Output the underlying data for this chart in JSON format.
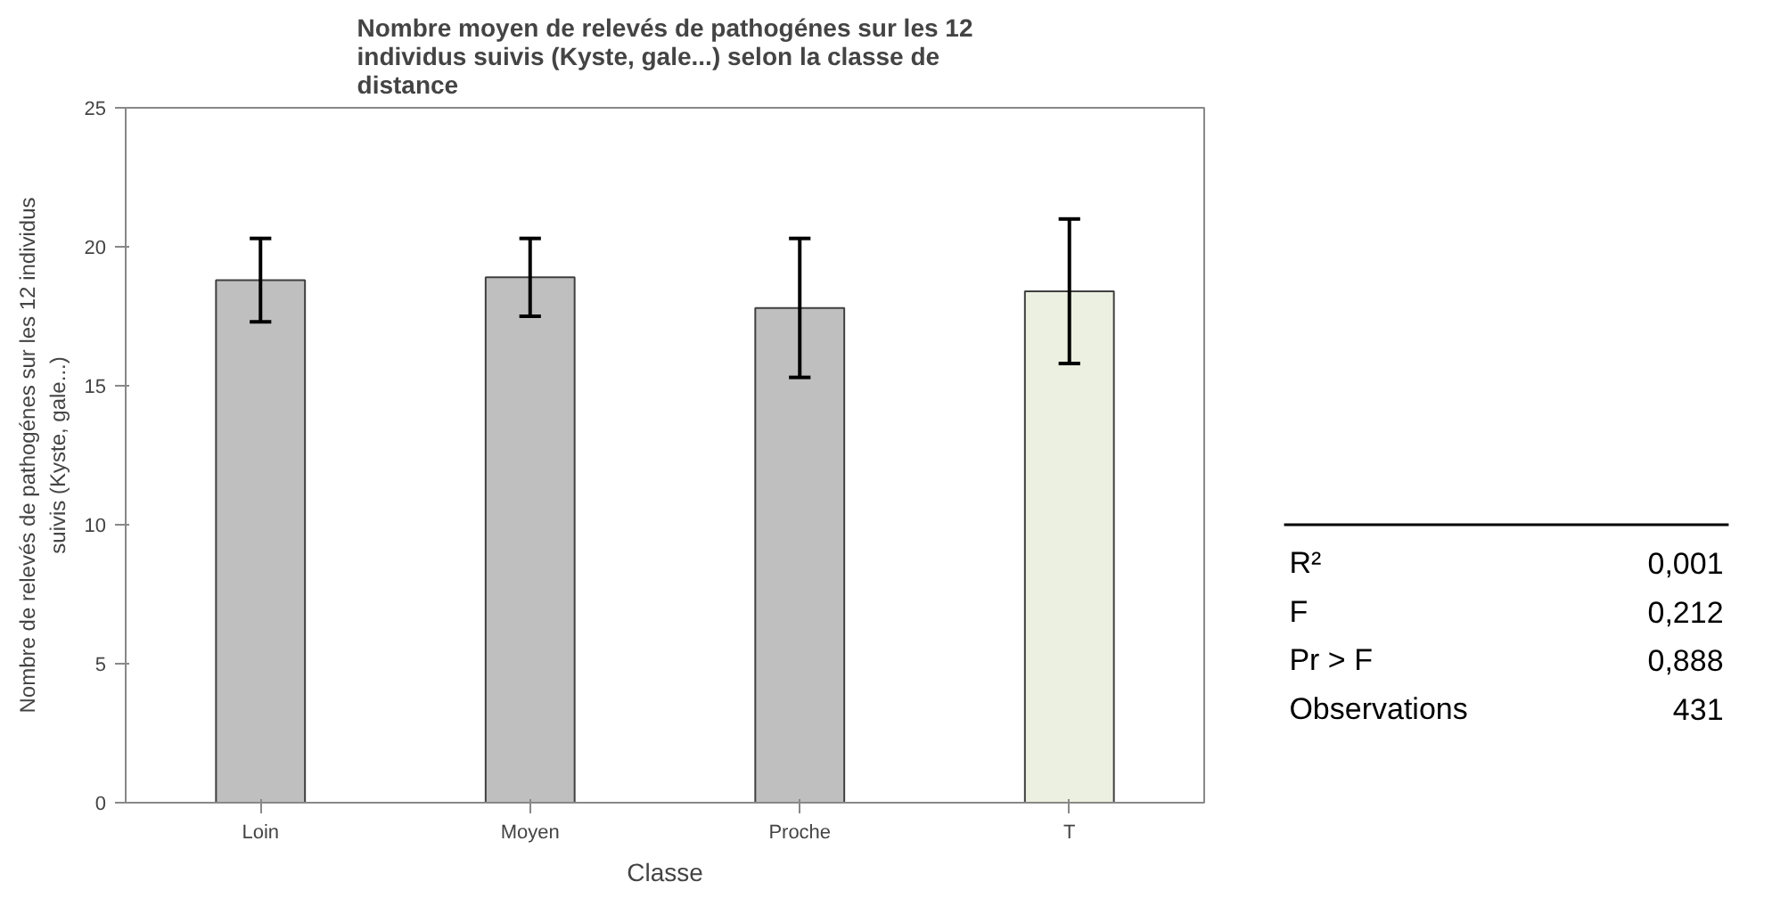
{
  "chart_data": {
    "type": "bar",
    "title": "Nombre moyen de relevés de pathogénes sur les 12 individus suivis (Kyste, gale...) selon la classe de distance",
    "xlabel": "Classe",
    "ylabel": "Nombre de relevés de pathogénes sur les 12 individus suivis (Kyste, gale...)",
    "categories": [
      "Loin",
      "Moyen",
      "Proche",
      "T"
    ],
    "values": [
      18.8,
      18.9,
      17.8,
      18.4
    ],
    "errors": [
      1.5,
      1.4,
      2.5,
      2.6
    ],
    "colors": [
      "#bfbfbf",
      "#bfbfbf",
      "#bfbfbf",
      "#ebf0e0"
    ],
    "ylim": [
      0,
      25
    ],
    "yticks": [
      0,
      5,
      10,
      15,
      20,
      25
    ],
    "grid": false,
    "annotations": [
      "R²",
      "0,001",
      "F",
      "0,212",
      "Pr > F",
      "0,888",
      "Observations",
      "431"
    ]
  }
}
